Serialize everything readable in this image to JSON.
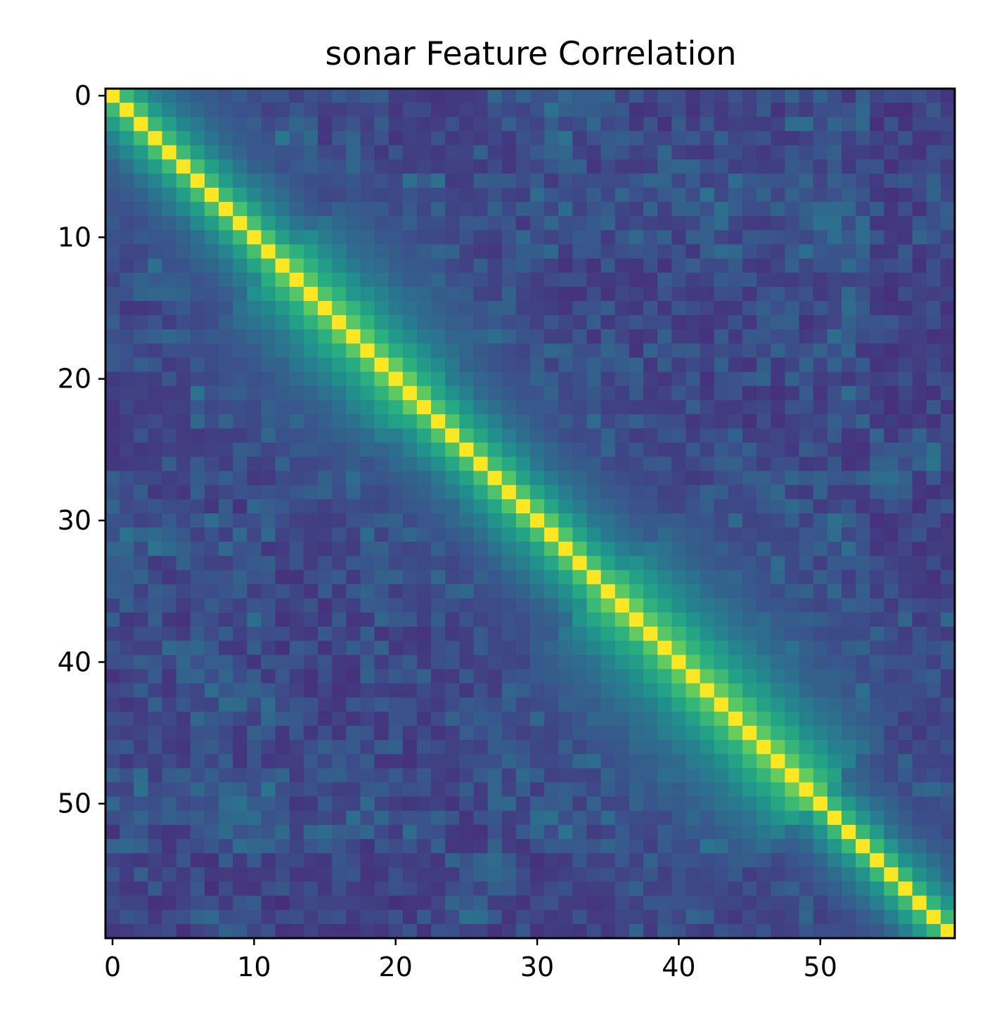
{
  "chart_data": {
    "type": "heatmap",
    "title": "sonar Feature Correlation",
    "xlabel": "",
    "ylabel": "",
    "n": 60,
    "x_ticks": [
      0,
      10,
      20,
      30,
      40,
      50
    ],
    "y_ticks": [
      0,
      10,
      20,
      30,
      40,
      50
    ],
    "colormap": "viridis",
    "value_range": [
      -0.2,
      1.0
    ],
    "grid": false,
    "legend": "none",
    "matrix": "60x60 correlation matrix of sonar features; diagonal = 1.0, strong positive correlation among neighbouring features (band widening in the middle, ~0.7 near the diagonal), low or slightly negative values far from the diagonal"
  }
}
